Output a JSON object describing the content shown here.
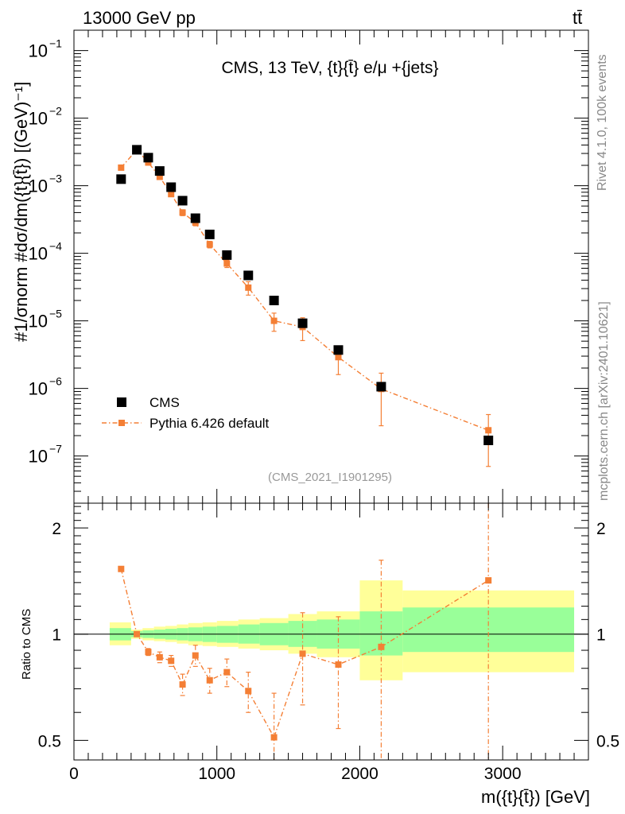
{
  "header": {
    "left": "13000 GeV pp",
    "right": "tt̄"
  },
  "side": {
    "rivet": "Rivet 4.1.0,  100k events",
    "url": "mcplots.cern.ch [arXiv:2401.10621]"
  },
  "colors": {
    "mc": "#f47f35",
    "data": "#000000",
    "band_inner": "#99ff99",
    "band_outer": "#ffff99"
  },
  "chart_data": [
    {
      "type": "scatter",
      "title": "CMS, 13 TeV, {t}{t̄} e/μ +{jets}",
      "analysis": "(CMS_2021_I1901295)",
      "ylabel": "#1/σnorm #dσ/dm({t}{t̄}) [(GeV)⁻¹]",
      "yscale": "log",
      "xlim": [
        0,
        3600
      ],
      "ylim": [
        2e-08,
        0.2
      ],
      "yticks": [
        {
          "v": 1e-07,
          "base": "10",
          "exp": "−7"
        },
        {
          "v": 1e-06,
          "base": "10",
          "exp": "−6"
        },
        {
          "v": 1e-05,
          "base": "10",
          "exp": "−5"
        },
        {
          "v": 0.0001,
          "base": "10",
          "exp": "−4"
        },
        {
          "v": 0.001,
          "base": "10",
          "exp": "−3"
        },
        {
          "v": 0.01,
          "base": "10",
          "exp": "−2"
        },
        {
          "v": 0.1,
          "base": "10",
          "exp": "−1"
        }
      ],
      "legend": [
        {
          "name": "CMS",
          "kind": "data"
        },
        {
          "name": "Pythia 6.426 default",
          "kind": "mc"
        }
      ],
      "series": [
        {
          "name": "CMS",
          "x": [
            330,
            440,
            520,
            600,
            680,
            760,
            850,
            950,
            1070,
            1220,
            1400,
            1600,
            1850,
            2150,
            2900
          ],
          "y": [
            0.00125,
            0.0034,
            0.0026,
            0.00165,
            0.00095,
            0.0006,
            0.00033,
            0.00019,
            9.4e-05,
            4.7e-05,
            2e-05,
            9.2e-06,
            3.7e-06,
            1.06e-06,
            1.7e-07
          ]
        },
        {
          "name": "Pythia 6.426 default",
          "x": [
            330,
            440,
            520,
            600,
            680,
            760,
            850,
            950,
            1070,
            1220,
            1400,
            1600,
            1850,
            2150,
            2900
          ],
          "y": [
            0.00185,
            0.0034,
            0.0022,
            0.00135,
            0.00075,
            0.0004,
            0.000285,
            0.000135,
            7.05e-05,
            3.1e-05,
            1e-05,
            8.1e-06,
            2.9e-06,
            9.8e-07,
            2.4e-07
          ],
          "err_lo": [
            0.0001,
            0.00015,
            0.0001,
            0.0001,
            6e-05,
            4e-05,
            3e-05,
            1.5e-05,
            9e-06,
            7e-06,
            3e-06,
            3e-06,
            1.3e-06,
            7e-07,
            1.7e-07
          ],
          "err_hi": [
            0.0001,
            0.00015,
            0.0001,
            0.0001,
            6e-05,
            4e-05,
            3e-05,
            1.5e-05,
            9e-06,
            7e-06,
            3e-06,
            3e-06,
            1.3e-06,
            7e-07,
            1.7e-07
          ]
        }
      ]
    },
    {
      "type": "scatter",
      "ylabel": "Ratio to CMS",
      "xlabel": "m({t}{t̄}) [GeV]",
      "yscale": "log",
      "xlim": [
        0,
        3600
      ],
      "ylim": [
        0.44,
        2.35
      ],
      "yticks": [
        {
          "v": 0.5,
          "label": "0.5"
        },
        {
          "v": 1,
          "label": "1"
        },
        {
          "v": 2,
          "label": "2"
        }
      ],
      "xticks": [
        {
          "v": 0,
          "label": "0"
        },
        {
          "v": 1000,
          "label": "1000"
        },
        {
          "v": 2000,
          "label": "2000"
        },
        {
          "v": 3000,
          "label": "3000"
        }
      ],
      "bands": [
        {
          "x0": 250,
          "x1": 400,
          "inner": [
            0.96,
            1.04
          ],
          "outer": [
            0.93,
            1.08
          ]
        },
        {
          "x0": 400,
          "x1": 480,
          "inner": [
            0.98,
            1.02
          ],
          "outer": [
            0.97,
            1.03
          ]
        },
        {
          "x0": 480,
          "x1": 560,
          "inner": [
            0.975,
            1.025
          ],
          "outer": [
            0.96,
            1.04
          ]
        },
        {
          "x0": 560,
          "x1": 640,
          "inner": [
            0.97,
            1.03
          ],
          "outer": [
            0.955,
            1.05
          ]
        },
        {
          "x0": 640,
          "x1": 720,
          "inner": [
            0.965,
            1.035
          ],
          "outer": [
            0.95,
            1.055
          ]
        },
        {
          "x0": 720,
          "x1": 800,
          "inner": [
            0.96,
            1.04
          ],
          "outer": [
            0.94,
            1.065
          ]
        },
        {
          "x0": 800,
          "x1": 900,
          "inner": [
            0.955,
            1.045
          ],
          "outer": [
            0.93,
            1.075
          ]
        },
        {
          "x0": 900,
          "x1": 1000,
          "inner": [
            0.95,
            1.05
          ],
          "outer": [
            0.925,
            1.08
          ]
        },
        {
          "x0": 1000,
          "x1": 1150,
          "inner": [
            0.945,
            1.055
          ],
          "outer": [
            0.92,
            1.09
          ]
        },
        {
          "x0": 1150,
          "x1": 1300,
          "inner": [
            0.94,
            1.065
          ],
          "outer": [
            0.91,
            1.1
          ]
        },
        {
          "x0": 1300,
          "x1": 1500,
          "inner": [
            0.93,
            1.075
          ],
          "outer": [
            0.9,
            1.11
          ]
        },
        {
          "x0": 1500,
          "x1": 1700,
          "inner": [
            0.92,
            1.09
          ],
          "outer": [
            0.88,
            1.14
          ]
        },
        {
          "x0": 1700,
          "x1": 2000,
          "inner": [
            0.91,
            1.1
          ],
          "outer": [
            0.86,
            1.16
          ]
        },
        {
          "x0": 2000,
          "x1": 2300,
          "inner": [
            0.87,
            1.16
          ],
          "outer": [
            0.74,
            1.42
          ]
        },
        {
          "x0": 2300,
          "x1": 3500,
          "inner": [
            0.89,
            1.19
          ],
          "outer": [
            0.78,
            1.33
          ]
        }
      ],
      "series": [
        {
          "name": "Pythia 6.426 default",
          "x": [
            330,
            440,
            520,
            600,
            680,
            760,
            850,
            950,
            1070,
            1220,
            1400,
            1600,
            1850,
            2150,
            2900
          ],
          "y": [
            1.53,
            1.0,
            0.89,
            0.86,
            0.84,
            0.72,
            0.87,
            0.74,
            0.78,
            0.69,
            0.51,
            0.88,
            0.82,
            0.92,
            1.42
          ],
          "err_lo": [
            0.02,
            0.01,
            0.02,
            0.03,
            0.03,
            0.05,
            0.06,
            0.06,
            0.07,
            0.09,
            0.13,
            0.25,
            0.28,
            0.5,
            1.0
          ],
          "err_hi": [
            0.02,
            0.01,
            0.02,
            0.03,
            0.03,
            0.05,
            0.06,
            0.06,
            0.07,
            0.09,
            0.17,
            0.27,
            0.3,
            0.7,
            1.5
          ]
        }
      ]
    }
  ]
}
